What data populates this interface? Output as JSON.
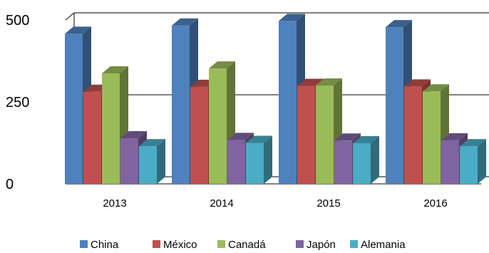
{
  "chart_data": {
    "type": "bar",
    "style": "3d-clustered-column",
    "categories": [
      "2013",
      "2014",
      "2015",
      "2016"
    ],
    "series": [
      {
        "name": "China",
        "values": [
          458,
          483,
          497,
          478
        ],
        "color": "#4F81BD"
      },
      {
        "name": "México",
        "values": [
          281,
          296,
          299,
          297
        ],
        "color": "#C0504D"
      },
      {
        "name": "Canadá",
        "values": [
          337,
          352,
          300,
          282
        ],
        "color": "#9BBB59"
      },
      {
        "name": "Japón",
        "values": [
          139,
          134,
          132,
          133
        ],
        "color": "#8064A2"
      },
      {
        "name": "Alemania",
        "values": [
          115,
          125,
          124,
          115
        ],
        "color": "#4BACC6"
      }
    ],
    "yticks": [
      "0",
      "250",
      "500"
    ],
    "ylim": [
      0,
      500
    ],
    "grid": true,
    "legend": "bottom"
  }
}
